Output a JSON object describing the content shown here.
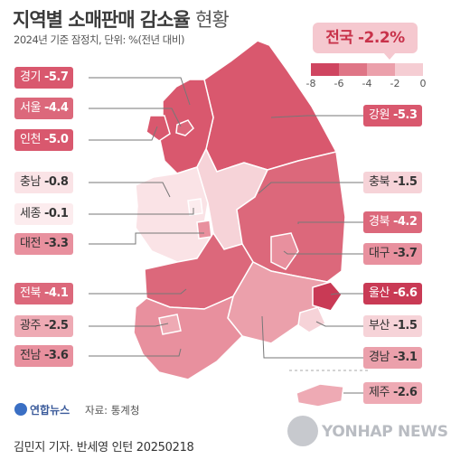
{
  "title": {
    "main": "지역별 소매판매 감소율",
    "suffix": "현황"
  },
  "subtitle": "2024년 기준 잠정치, 단위: %(전년 대비)",
  "national": {
    "label": "전국",
    "value": "-2.2%"
  },
  "legend": {
    "ticks": [
      "-8",
      "-6",
      "-4",
      "-2",
      "0"
    ],
    "colors": [
      "#cf4560",
      "#df7586",
      "#eba0ab",
      "#f5cdd3"
    ]
  },
  "regions": [
    {
      "name": "경기",
      "value": "-5.7",
      "fill": "#d9586e"
    },
    {
      "name": "서울",
      "value": "-4.4",
      "fill": "#dc687b"
    },
    {
      "name": "인천",
      "value": "-5.0",
      "fill": "#d9586e"
    },
    {
      "name": "충남",
      "value": "-0.8",
      "fill": "#fae3e6"
    },
    {
      "name": "세종",
      "value": "-0.1",
      "fill": "#fcecee"
    },
    {
      "name": "대전",
      "value": "-3.3",
      "fill": "#e8909e"
    },
    {
      "name": "전북",
      "value": "-4.1",
      "fill": "#dc687b"
    },
    {
      "name": "광주",
      "value": "-2.5",
      "fill": "#eeaab4"
    },
    {
      "name": "전남",
      "value": "-3.6",
      "fill": "#e8909e"
    },
    {
      "name": "강원",
      "value": "-5.3",
      "fill": "#d9586e"
    },
    {
      "name": "충북",
      "value": "-1.5",
      "fill": "#f6d3d8"
    },
    {
      "name": "경북",
      "value": "-4.2",
      "fill": "#dc687b"
    },
    {
      "name": "대구",
      "value": "-3.7",
      "fill": "#e8909e"
    },
    {
      "name": "울산",
      "value": "-6.6",
      "fill": "#c93a55"
    },
    {
      "name": "부산",
      "value": "-1.5",
      "fill": "#f6d3d8"
    },
    {
      "name": "경남",
      "value": "-3.1",
      "fill": "#eba0ab"
    },
    {
      "name": "제주",
      "value": "-2.6",
      "fill": "#eeaab4"
    }
  ],
  "footer": {
    "logo": "연합뉴스",
    "source": "자료: 통계청",
    "credit": "김민지 기자. 반세영 인턴  20250218",
    "watermark": "YONHAP NEWS"
  }
}
